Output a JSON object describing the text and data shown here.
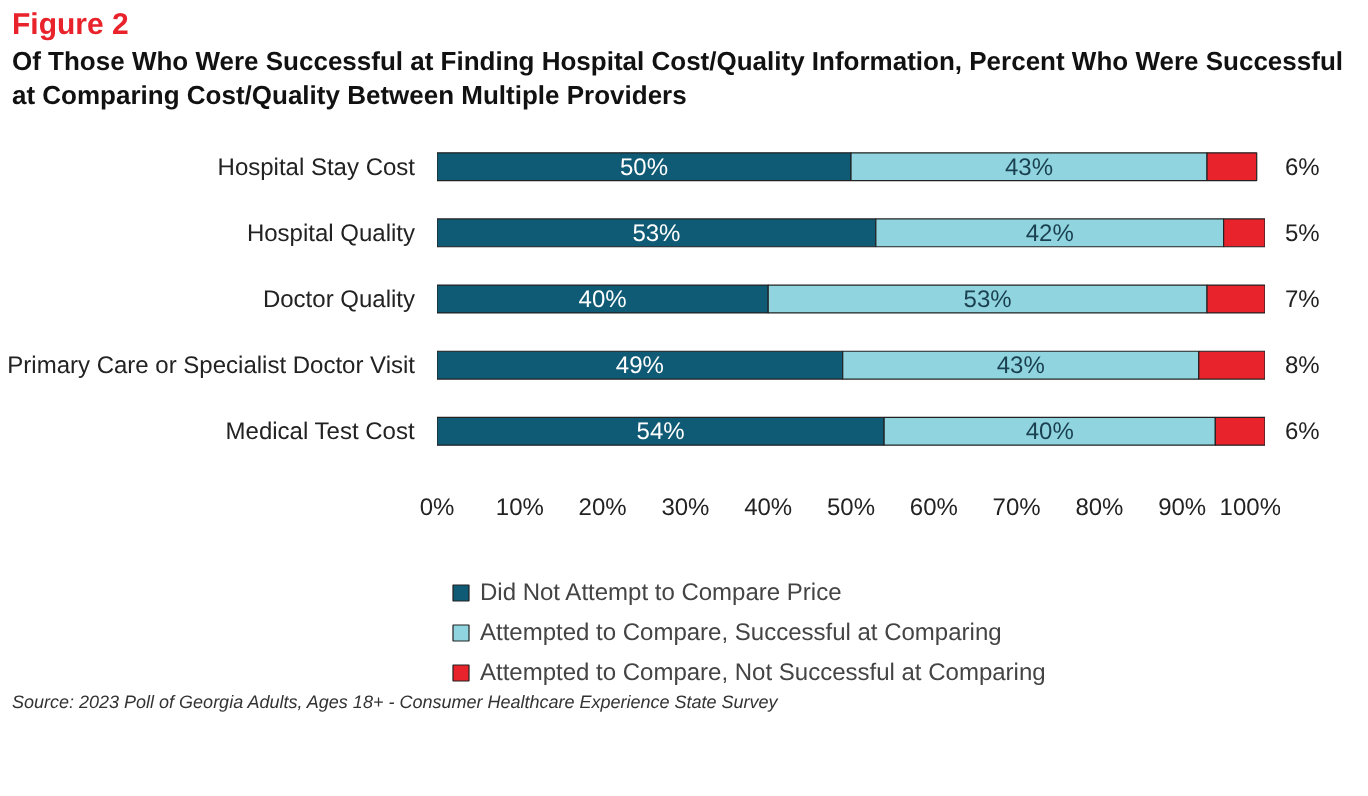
{
  "chart_data": {
    "type": "bar",
    "orientation": "horizontal",
    "stacked": true,
    "title": "Figure 2",
    "subtitle": "Of Those Who Were Successful at Finding Hospital Cost/Quality Information, Percent Who Were Successful at Comparing Cost/Quality Between Multiple Providers",
    "categories": [
      "Hospital Stay Cost",
      "Hospital Quality",
      "Doctor Quality",
      "Primary Care or Specialist Doctor Visit",
      "Medical Test Cost"
    ],
    "series": [
      {
        "name": "Did Not Attempt to Compare Price",
        "color": "#0f5a74",
        "values": [
          50,
          53,
          40,
          49,
          54
        ],
        "value_labels": [
          "50%",
          "53%",
          "40%",
          "49%",
          "54%"
        ]
      },
      {
        "name": "Attempted to Compare, Successful at Comparing",
        "color": "#8fd4df",
        "values": [
          43,
          42,
          53,
          43,
          40
        ],
        "value_labels": [
          "43%",
          "42%",
          "53%",
          "43%",
          "40%"
        ]
      },
      {
        "name": "Attempted to Compare, Not Successful at Comparing",
        "color": "#e8232b",
        "values": [
          6,
          5,
          7,
          8,
          6
        ],
        "value_labels": [
          "6%",
          "5%",
          "7%",
          "8%",
          "6%"
        ]
      }
    ],
    "xlim": [
      0,
      100
    ],
    "xticks": [
      {
        "value": 0,
        "label": "0%"
      },
      {
        "value": 10,
        "label": "10%"
      },
      {
        "value": 20,
        "label": "20%"
      },
      {
        "value": 30,
        "label": "30%"
      },
      {
        "value": 40,
        "label": "40%"
      },
      {
        "value": 50,
        "label": "50%"
      },
      {
        "value": 60,
        "label": "60%"
      },
      {
        "value": 70,
        "label": "70%"
      },
      {
        "value": 80,
        "label": "80%"
      },
      {
        "value": 90,
        "label": "90%"
      },
      {
        "value": 100,
        "label": "100%"
      }
    ],
    "grid": false,
    "legend": "bottom",
    "annotations": [
      "Source: 2023 Poll of Georgia Adults, Ages 18+ - Consumer Healthcare Experience State Survey"
    ]
  }
}
